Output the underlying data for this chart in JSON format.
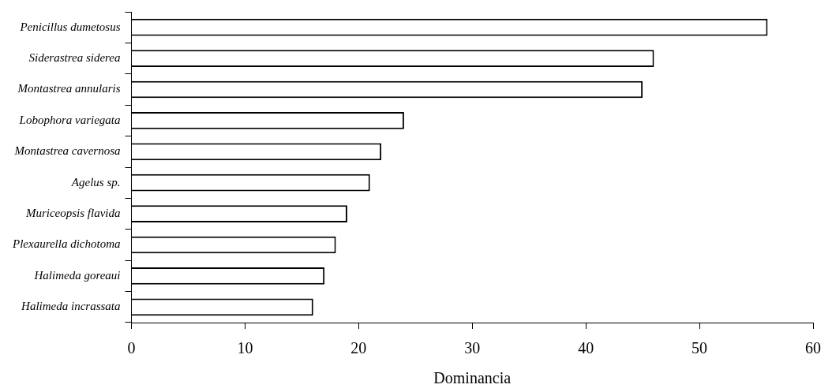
{
  "chart_data": {
    "type": "bar",
    "orientation": "horizontal",
    "xlabel": "Dominancia",
    "categories": [
      "Penicillus dumetosus",
      "Siderastrea siderea",
      "Montastrea annularis",
      "Lobophora variegata",
      "Montastrea cavernosa",
      "Agelus sp.",
      "Muriceopsis flavida",
      "Plexaurella dichotoma",
      "Halimeda goreaui",
      "Halimeda incrassata"
    ],
    "values": [
      56,
      46,
      45,
      24,
      22,
      21,
      19,
      18,
      17,
      16
    ],
    "color": "#ffffff",
    "xlim": [
      0,
      60
    ],
    "xticks": [
      0,
      10,
      20,
      30,
      40,
      50,
      60
    ],
    "grid": false,
    "legend": false
  }
}
